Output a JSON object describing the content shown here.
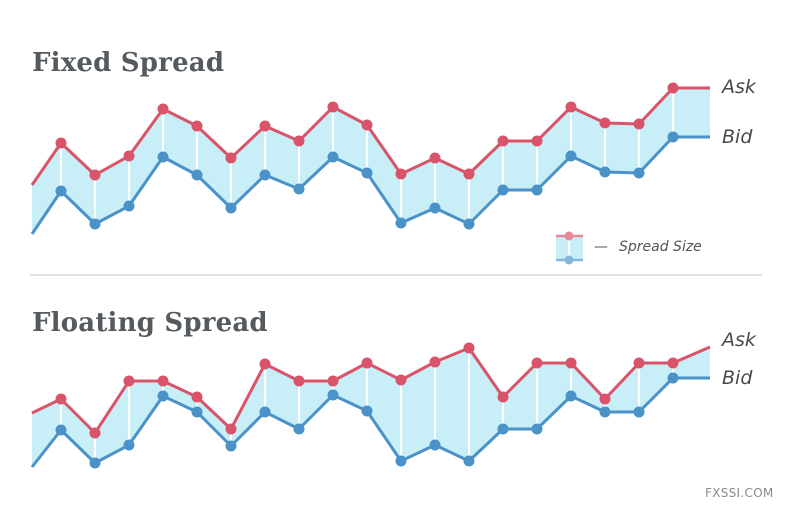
{
  "chart_data": [
    {
      "type": "area",
      "title": "Fixed Spread",
      "x": [
        32,
        61,
        95,
        129,
        163,
        197,
        231,
        265,
        299,
        333,
        367,
        401,
        435,
        469,
        503,
        537,
        571,
        605,
        639,
        673,
        710
      ],
      "series": [
        {
          "name": "Ask",
          "color": "#d9546a",
          "values": [
            185,
            143,
            175,
            156,
            109,
            126,
            158,
            126,
            141,
            107,
            125,
            174,
            158,
            174,
            141,
            141,
            107,
            123,
            124,
            88,
            88
          ]
        },
        {
          "name": "Bid",
          "color": "#4a92c8",
          "values": [
            234,
            191,
            224,
            206,
            157,
            175,
            208,
            175,
            189,
            157,
            173,
            223,
            208,
            224,
            190,
            190,
            156,
            172,
            173,
            137,
            137
          ]
        }
      ],
      "fill_color": "#c8eff7",
      "note": "values are pixel y-positions (no axes shown); spread constant",
      "legend": "Spread Size"
    },
    {
      "type": "area",
      "title": "Floating Spread",
      "x": [
        32,
        61,
        95,
        129,
        163,
        197,
        231,
        265,
        299,
        333,
        367,
        401,
        435,
        469,
        503,
        537,
        571,
        605,
        639,
        673,
        710
      ],
      "series": [
        {
          "name": "Ask",
          "color": "#d9546a",
          "values": [
            413,
            399,
            433,
            381,
            381,
            397,
            429,
            364,
            381,
            381,
            363,
            380,
            362,
            348,
            397,
            363,
            363,
            399,
            363,
            363,
            347
          ]
        },
        {
          "name": "Bid",
          "color": "#4a92c8",
          "values": [
            467,
            430,
            463,
            445,
            396,
            412,
            446,
            412,
            429,
            395,
            411,
            461,
            445,
            461,
            429,
            429,
            396,
            412,
            412,
            378,
            378
          ]
        }
      ],
      "fill_color": "#c8eff7",
      "note": "values are pixel y-positions (no axes shown); spread varies"
    }
  ],
  "fixed": {
    "title": "Fixed Spread",
    "ask_label": "Ask",
    "bid_label": "Bid"
  },
  "floating": {
    "title": "Floating Spread",
    "ask_label": "Ask",
    "bid_label": "Bid"
  },
  "legend": {
    "dash": "—",
    "text": "Spread Size"
  },
  "watermark": "FXSSI.COM"
}
